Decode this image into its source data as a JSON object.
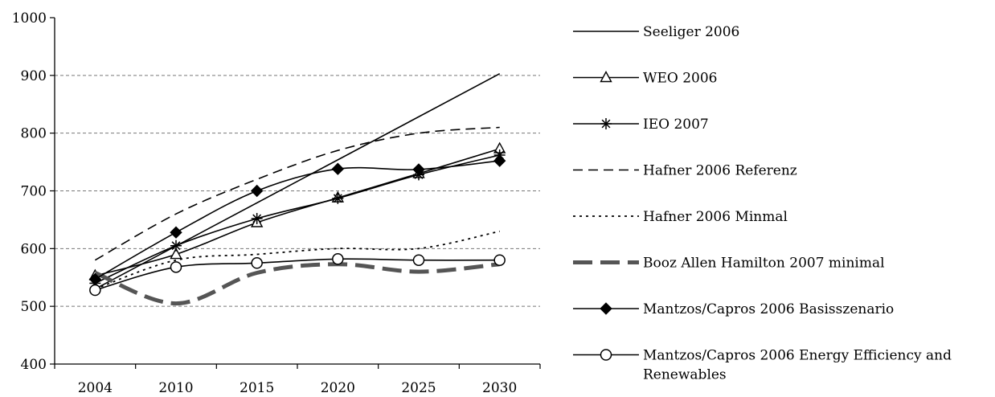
{
  "chart_data": {
    "type": "line",
    "title": "",
    "xlabel": "",
    "ylabel": "",
    "categories": [
      "2004",
      "2010",
      "2015",
      "2020",
      "2025",
      "2030"
    ],
    "ylim": [
      400,
      1000
    ],
    "yticks": [
      400,
      500,
      600,
      700,
      800,
      900,
      1000
    ],
    "grid": "horizontal-dashed",
    "legend_position": "right",
    "series": [
      {
        "name": "Seeliger 2006",
        "style": "solid",
        "marker": "none",
        "color": "#000000",
        "values": [
          530,
          null,
          null,
          null,
          null,
          903
        ]
      },
      {
        "name": "WEO 2006",
        "style": "solid",
        "marker": "triangle-open",
        "color": "#000000",
        "values": [
          553,
          590,
          645,
          688,
          730,
          773
        ]
      },
      {
        "name": "IEO 2007",
        "style": "solid",
        "marker": "asterisk",
        "color": "#000000",
        "values": [
          540,
          605,
          652,
          687,
          728,
          762
        ]
      },
      {
        "name": "Hafner 2006  Referenz",
        "style": "dashed",
        "marker": "none",
        "color": "#000000",
        "values": [
          580,
          660,
          720,
          770,
          800,
          810
        ]
      },
      {
        "name": "Hafner 2006 Minmal",
        "style": "dotted",
        "marker": "none",
        "color": "#000000",
        "values": [
          530,
          580,
          590,
          600,
          600,
          630
        ]
      },
      {
        "name": "Booz Allen Hamilton 2007 minimal",
        "style": "thick-dashed",
        "marker": "none",
        "color": "#555555",
        "values": [
          558,
          505,
          558,
          573,
          560,
          573
        ]
      },
      {
        "name": "Mantzos/Capros 2006 Basisszenario",
        "style": "solid",
        "marker": "diamond-filled",
        "color": "#000000",
        "values": [
          547,
          628,
          700,
          738,
          737,
          752
        ]
      },
      {
        "name": "Mantzos/Capros 2006 Energy Efficiency and Renewables",
        "style": "solid",
        "marker": "circle-open",
        "color": "#000000",
        "values": [
          528,
          568,
          575,
          582,
          580,
          580
        ]
      }
    ]
  }
}
